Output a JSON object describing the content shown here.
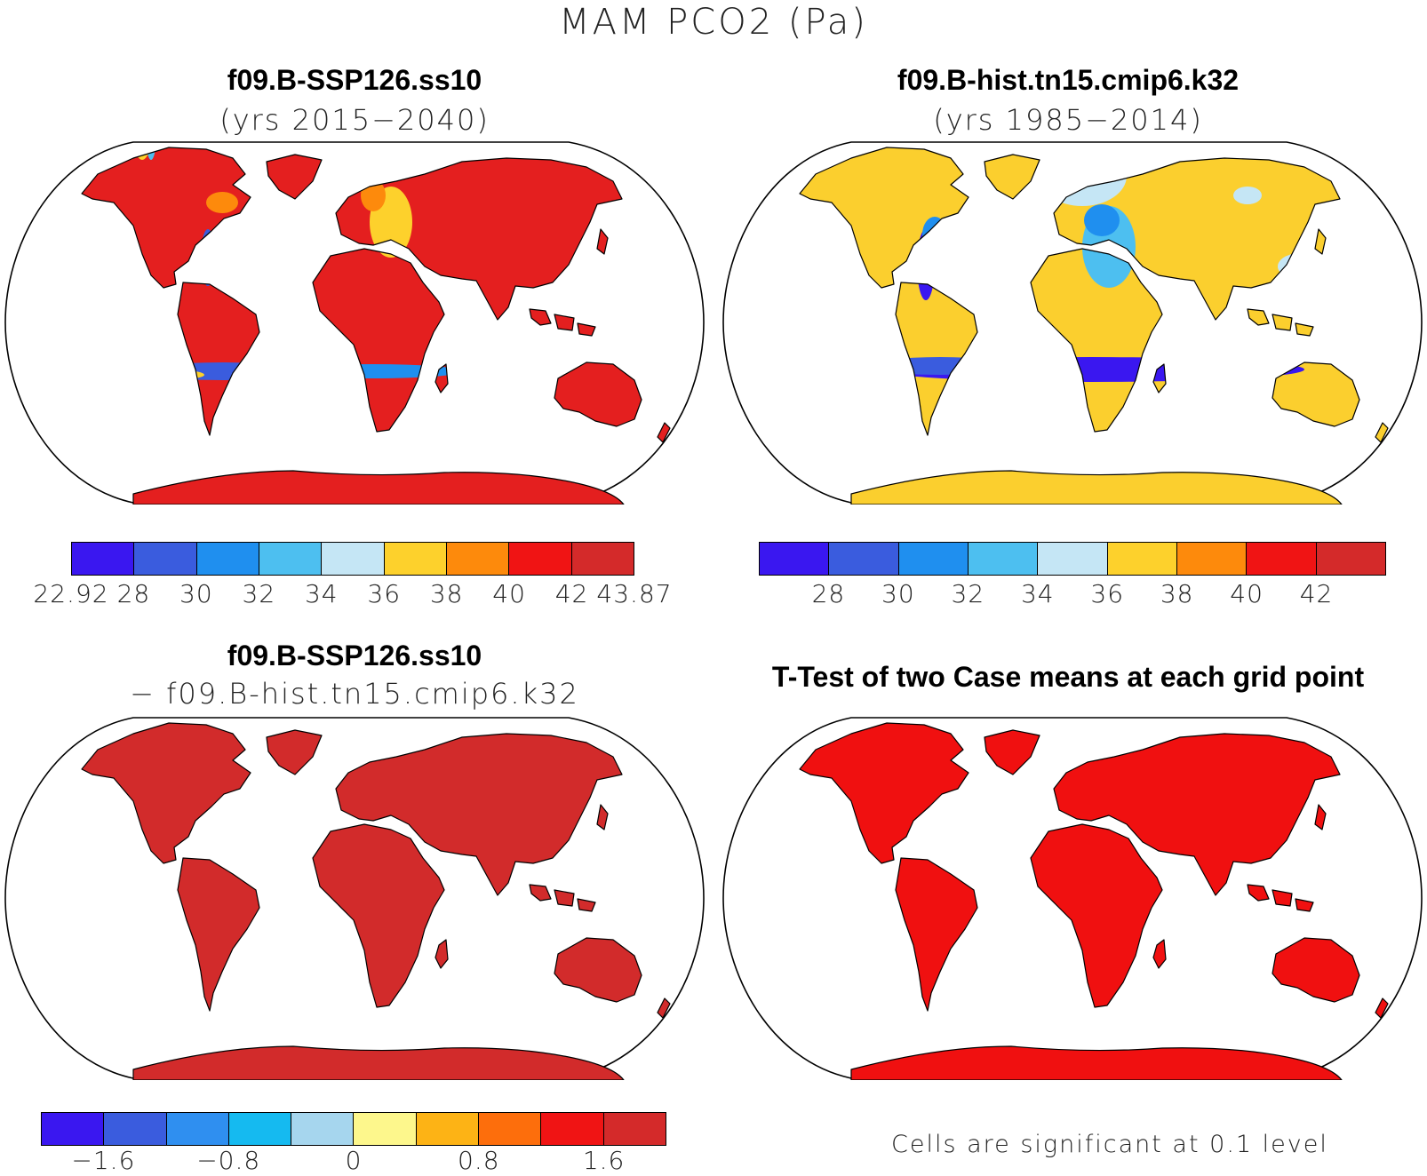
{
  "figure": {
    "title": "MAM PCO2 (Pa)"
  },
  "panels": [
    {
      "id": "case1",
      "title": "f09.B-SSP126.ss10",
      "subtitle": "(yrs 2015−2040)",
      "scheme": "case1"
    },
    {
      "id": "case2",
      "title": "f09.B-hist.tn15.cmip6.k32",
      "subtitle": "(yrs 1985−2014)",
      "scheme": "case2"
    },
    {
      "id": "diff",
      "title": "f09.B-SSP126.ss10",
      "subtitle": "− f09.B-hist.tn15.cmip6.k32",
      "scheme": "diff"
    },
    {
      "id": "ttest",
      "title": "T-Test of two Case means at each grid point",
      "subtitle": "",
      "scheme": "ttest"
    }
  ],
  "colorbars": {
    "case1": {
      "colors": [
        "#3a17f0",
        "#3a5cde",
        "#1f8fef",
        "#4dbff0",
        "#c5e6f5",
        "#fdd12c",
        "#fd8a0c",
        "#f01414",
        "#d42a2a"
      ],
      "labels": [
        "22.92",
        "28",
        "30",
        "32",
        "34",
        "36",
        "38",
        "40",
        "42",
        "43.87"
      ]
    },
    "case2": {
      "colors": [
        "#3a17f0",
        "#3a5cde",
        "#1f8fef",
        "#4dbff0",
        "#c5e6f5",
        "#fdd12c",
        "#fd8a0c",
        "#f01414",
        "#d42a2a"
      ],
      "labels": [
        "28",
        "30",
        "32",
        "34",
        "36",
        "38",
        "40",
        "42"
      ]
    },
    "diff": {
      "colors": [
        "#3a17f0",
        "#3a5cde",
        "#2f8ff0",
        "#15baf0",
        "#a6d6ee",
        "#fdf78c",
        "#fdb315",
        "#fd6e0c",
        "#f01414",
        "#d42a2a"
      ],
      "labels": [
        "−1.6",
        "−0.8",
        "0",
        "0.8",
        "1.6"
      ]
    }
  },
  "ttest_note": "Cells are significant at 0.1 level",
  "map_colors": {
    "case1_land": "#e41f1f",
    "case2_land": "#fbcf2e",
    "diff_land": "#d22b2b",
    "ttest_land": "#f01010",
    "outline": "#000000"
  }
}
